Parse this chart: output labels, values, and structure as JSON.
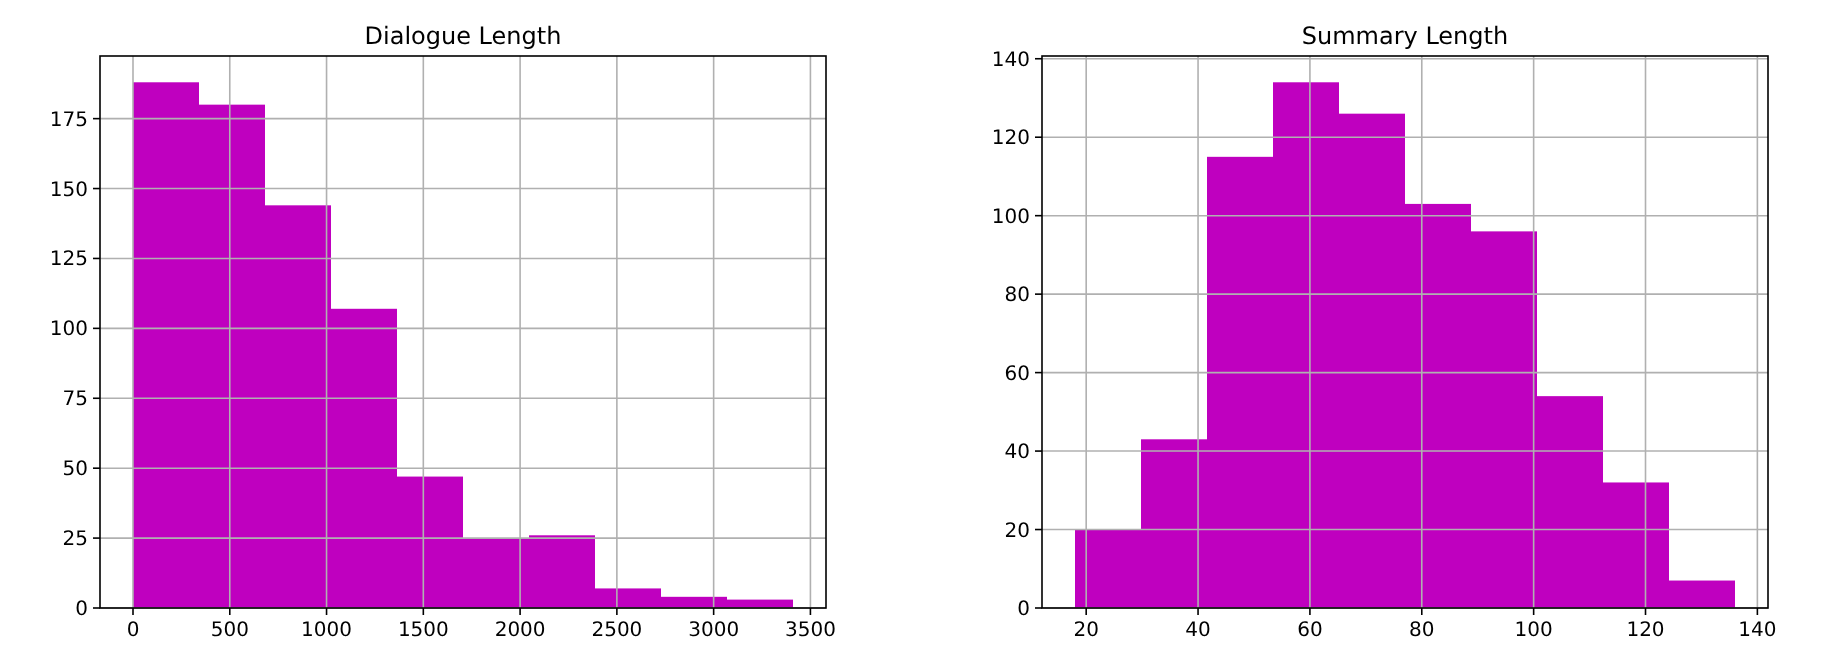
{
  "chart_data": [
    {
      "type": "histogram",
      "title": "Dialogue Length",
      "bins": [
        0,
        341,
        682,
        1023,
        1364,
        1705,
        2046,
        2387,
        2728,
        3069,
        3410
      ],
      "values": [
        188,
        180,
        144,
        107,
        47,
        25,
        26,
        7,
        4,
        3
      ],
      "color": "#bf00bf",
      "xlim": [
        -170.5,
        3580.5
      ],
      "xticks": [
        0,
        500,
        1000,
        1500,
        2000,
        2500,
        3000,
        3500
      ],
      "ylim": [
        0,
        197.4
      ],
      "yticks": [
        0,
        25,
        50,
        75,
        100,
        125,
        150,
        175
      ],
      "grid": true
    },
    {
      "type": "histogram",
      "title": "Summary Length",
      "bins": [
        18,
        29.8,
        41.6,
        53.4,
        65.2,
        77,
        88.8,
        100.6,
        112.4,
        124.2,
        136
      ],
      "values": [
        20,
        43,
        115,
        134,
        126,
        103,
        96,
        54,
        32,
        7
      ],
      "color": "#bf00bf",
      "xlim": [
        12.1,
        141.9
      ],
      "xticks": [
        20,
        40,
        60,
        80,
        100,
        120,
        140
      ],
      "ylim": [
        0,
        140.7
      ],
      "yticks": [
        0,
        20,
        40,
        60,
        80,
        100,
        120,
        140
      ],
      "grid": true
    }
  ]
}
